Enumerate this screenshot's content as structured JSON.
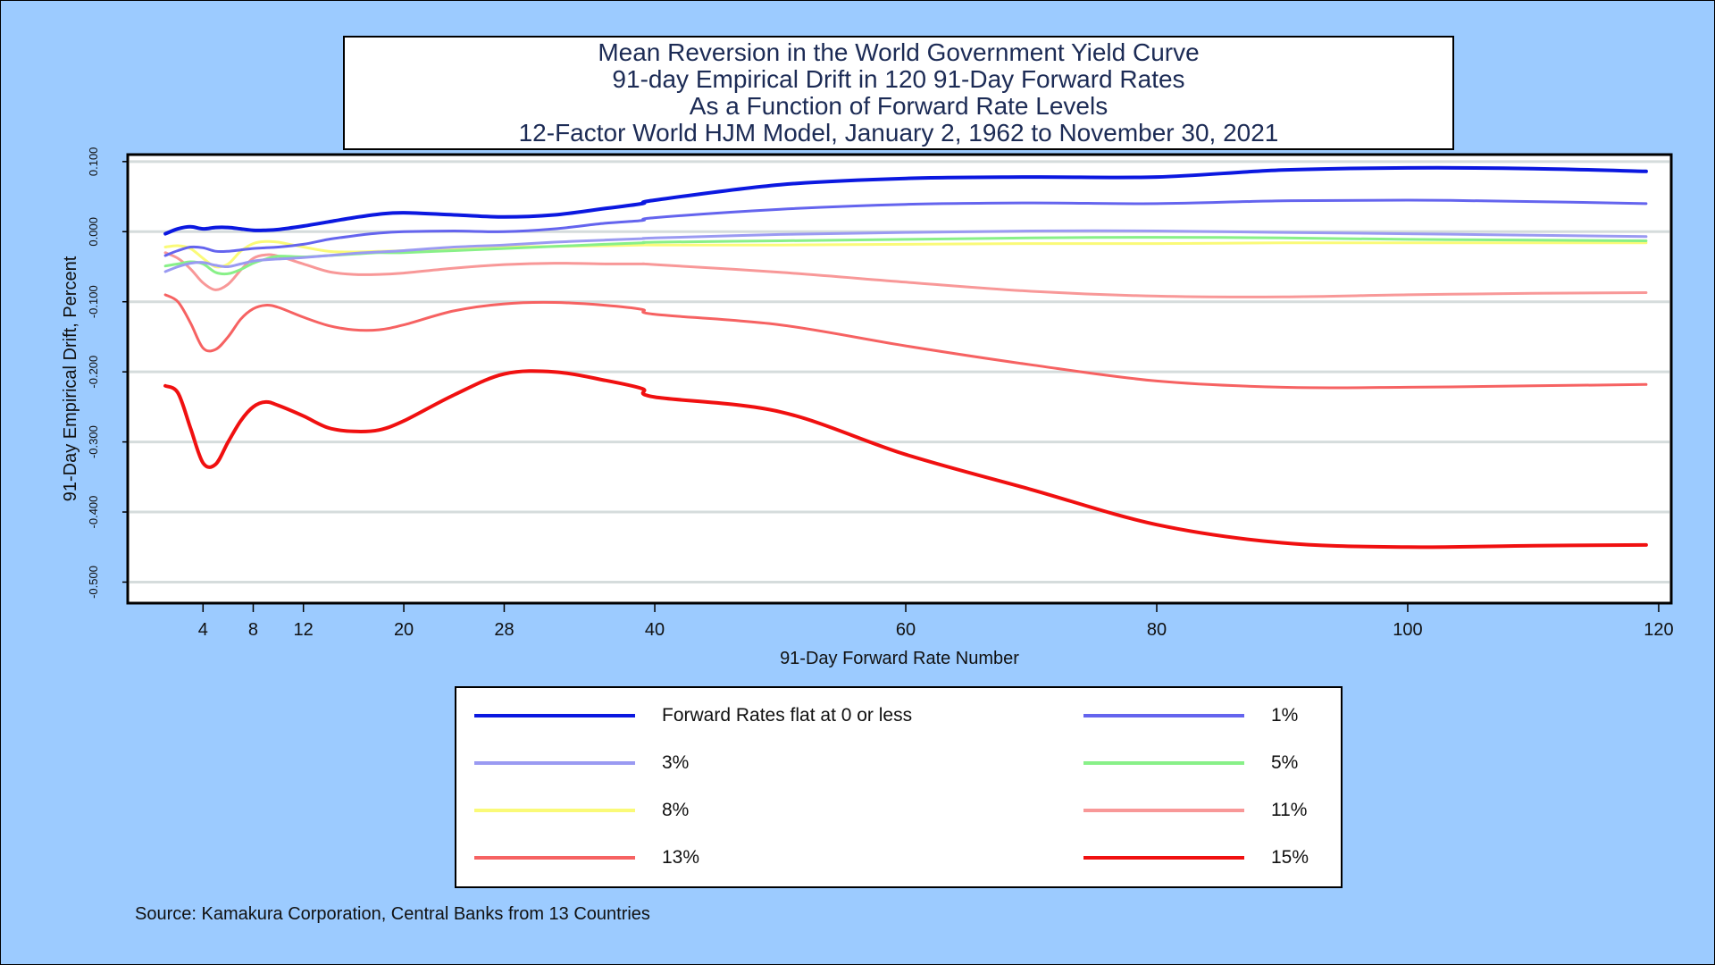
{
  "chart_data": {
    "type": "line",
    "title": [
      "Mean Reversion in the World Government Yield Curve",
      "91-day Empirical Drift in 120 91-Day Forward Rates",
      "As a Function of Forward Rate Levels",
      "12-Factor World HJM Model, January 2, 1962 to November 30, 2021"
    ],
    "xlabel": "91-Day Forward Rate Number",
    "ylabel": "91-Day Empirical Drift, Percent",
    "xlim": [
      -2,
      121
    ],
    "ylim": [
      -0.53,
      0.11
    ],
    "x_ticks": [
      4,
      8,
      12,
      20,
      28,
      40,
      60,
      80,
      100,
      120
    ],
    "y_ticks": [
      0.1,
      0.0,
      -0.1,
      -0.2,
      -0.3,
      -0.4,
      -0.5
    ],
    "y_tick_labels": [
      "0.100",
      "0.000",
      "-0.100",
      "-0.200",
      "-0.300",
      "-0.400",
      "-0.500"
    ],
    "grid": "horizontal",
    "legend_position": "below",
    "x": [
      1,
      2,
      3,
      4,
      5,
      6,
      7,
      8,
      9,
      10,
      12,
      14,
      16,
      18,
      20,
      24,
      28,
      32,
      36,
      39,
      40,
      50,
      60,
      70,
      80,
      90,
      100,
      110,
      119
    ],
    "series": [
      {
        "name": "Forward Rates flat at 0 or less",
        "color": "#0b18e0",
        "width": 4,
        "values": [
          -0.003,
          0.004,
          0.007,
          0.004,
          0.006,
          0.006,
          0.004,
          0.002,
          0.002,
          0.003,
          0.008,
          0.014,
          0.02,
          0.025,
          0.027,
          0.024,
          0.021,
          0.024,
          0.033,
          0.04,
          0.045,
          0.067,
          0.076,
          0.078,
          0.078,
          0.088,
          0.091,
          0.09,
          0.086
        ]
      },
      {
        "name": "1%",
        "color": "#6464ee",
        "width": 3,
        "values": [
          -0.034,
          -0.027,
          -0.022,
          -0.023,
          -0.028,
          -0.028,
          -0.026,
          -0.024,
          -0.023,
          -0.022,
          -0.018,
          -0.011,
          -0.006,
          -0.002,
          0.0,
          0.001,
          0.0,
          0.004,
          0.012,
          0.016,
          0.02,
          0.032,
          0.039,
          0.041,
          0.04,
          0.044,
          0.045,
          0.043,
          0.04
        ]
      },
      {
        "name": "3%",
        "color": "#9a9af2",
        "width": 3,
        "values": [
          -0.057,
          -0.05,
          -0.045,
          -0.044,
          -0.048,
          -0.05,
          -0.046,
          -0.042,
          -0.04,
          -0.039,
          -0.037,
          -0.034,
          -0.031,
          -0.029,
          -0.027,
          -0.022,
          -0.019,
          -0.015,
          -0.012,
          -0.01,
          -0.009,
          -0.004,
          -0.001,
          0.001,
          0.001,
          -0.001,
          -0.003,
          -0.005,
          -0.007
        ]
      },
      {
        "name": "5%",
        "color": "#88f088",
        "width": 3,
        "values": [
          -0.049,
          -0.046,
          -0.043,
          -0.046,
          -0.058,
          -0.06,
          -0.054,
          -0.045,
          -0.039,
          -0.035,
          -0.036,
          -0.034,
          -0.032,
          -0.03,
          -0.03,
          -0.027,
          -0.024,
          -0.021,
          -0.018,
          -0.016,
          -0.015,
          -0.013,
          -0.011,
          -0.009,
          -0.008,
          -0.009,
          -0.011,
          -0.012,
          -0.013
        ]
      },
      {
        "name": "8%",
        "color": "#fafa78",
        "width": 3,
        "values": [
          -0.022,
          -0.02,
          -0.024,
          -0.038,
          -0.05,
          -0.046,
          -0.028,
          -0.017,
          -0.014,
          -0.015,
          -0.022,
          -0.028,
          -0.029,
          -0.028,
          -0.027,
          -0.024,
          -0.022,
          -0.021,
          -0.02,
          -0.019,
          -0.019,
          -0.019,
          -0.018,
          -0.017,
          -0.017,
          -0.016,
          -0.016,
          -0.016,
          -0.016
        ]
      },
      {
        "name": "11%",
        "color": "#f89898",
        "width": 3,
        "values": [
          -0.03,
          -0.038,
          -0.053,
          -0.073,
          -0.083,
          -0.075,
          -0.055,
          -0.038,
          -0.033,
          -0.035,
          -0.046,
          -0.057,
          -0.061,
          -0.061,
          -0.059,
          -0.052,
          -0.047,
          -0.045,
          -0.046,
          -0.046,
          -0.047,
          -0.058,
          -0.072,
          -0.085,
          -0.092,
          -0.093,
          -0.09,
          -0.088,
          -0.087
        ]
      },
      {
        "name": "13%",
        "color": "#f66262",
        "width": 3,
        "values": [
          -0.09,
          -0.1,
          -0.13,
          -0.166,
          -0.168,
          -0.15,
          -0.125,
          -0.11,
          -0.105,
          -0.108,
          -0.122,
          -0.134,
          -0.14,
          -0.14,
          -0.133,
          -0.113,
          -0.103,
          -0.101,
          -0.105,
          -0.111,
          -0.118,
          -0.133,
          -0.163,
          -0.19,
          -0.213,
          -0.222,
          -0.222,
          -0.22,
          -0.218
        ]
      },
      {
        "name": "15%",
        "color": "#f01010",
        "width": 4,
        "values": [
          -0.22,
          -0.23,
          -0.28,
          -0.33,
          -0.332,
          -0.3,
          -0.27,
          -0.25,
          -0.243,
          -0.248,
          -0.263,
          -0.28,
          -0.285,
          -0.283,
          -0.27,
          -0.233,
          -0.203,
          -0.2,
          -0.212,
          -0.224,
          -0.236,
          -0.257,
          -0.318,
          -0.368,
          -0.418,
          -0.444,
          -0.45,
          -0.448,
          -0.447
        ]
      }
    ]
  },
  "source_note": "Source: Kamakura Corporation, Central Banks from 13 Countries"
}
